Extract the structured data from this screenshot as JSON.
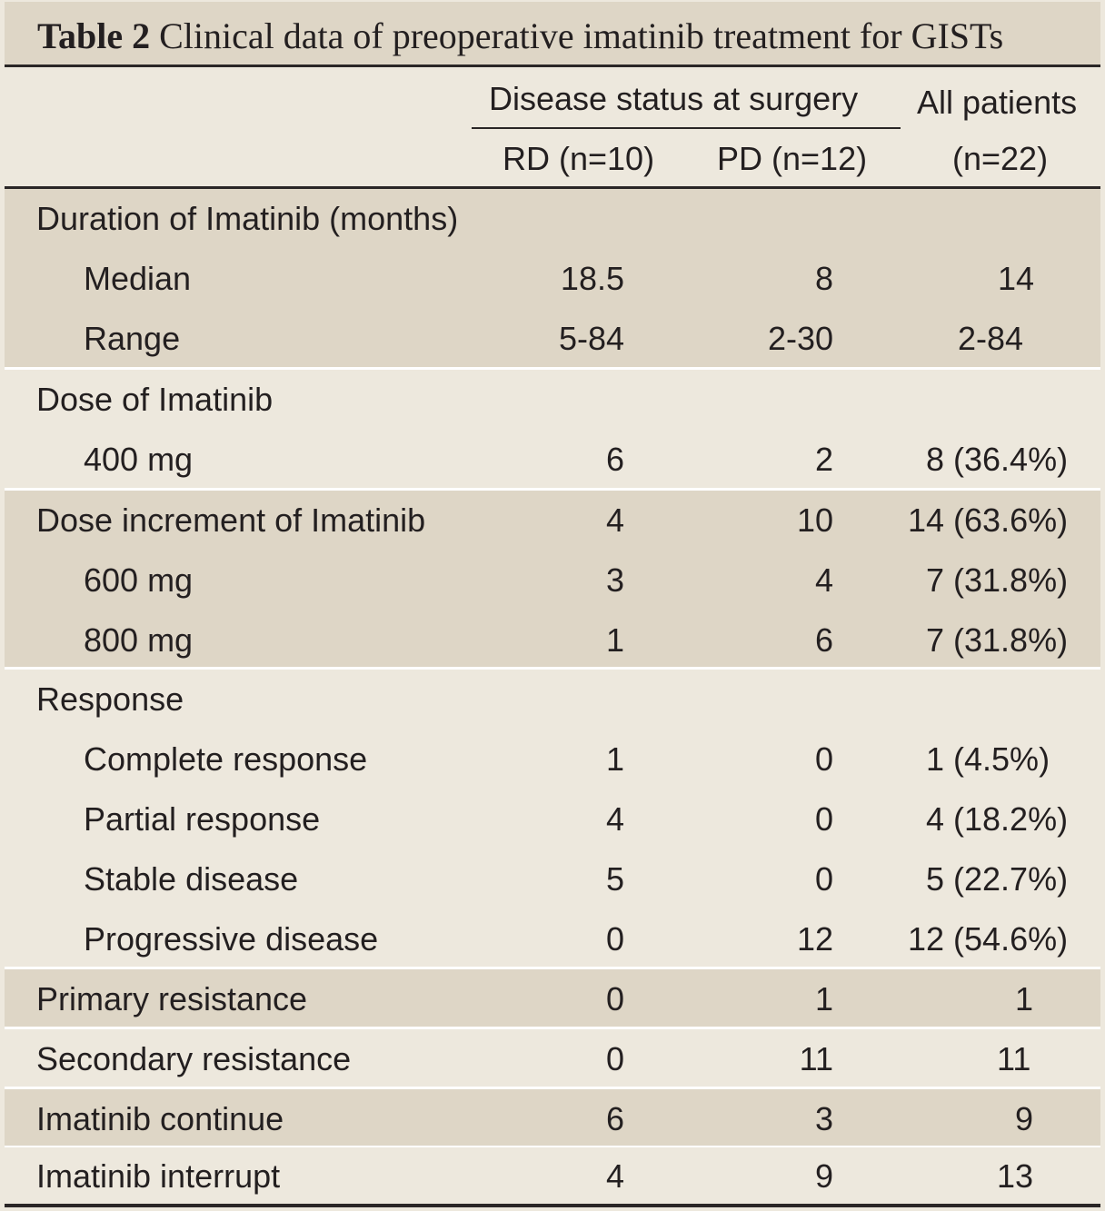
{
  "table": {
    "label": "Table 2",
    "caption": "Clinical data of preoperative imatinib treatment for GISTs",
    "header": {
      "group": "Disease status at surgery",
      "col1": "RD (n=10)",
      "col2": "PD (n=12)",
      "col3_line1": "All patients",
      "col3_line2": "(n=22)"
    },
    "rows": [
      {
        "label": "Duration of Imatinib (months)",
        "rd": "",
        "pd": "",
        "all": ""
      },
      {
        "label": "Median",
        "rd": "18.5",
        "pd": "8",
        "all": "14"
      },
      {
        "label": "Range",
        "rd": "5-84",
        "pd": "2-30",
        "all": "2-84"
      },
      {
        "label": "Dose of Imatinib",
        "rd": "",
        "pd": "",
        "all": ""
      },
      {
        "label": "400 mg",
        "rd": "6",
        "pd": "2",
        "all": "8 (36.4%)"
      },
      {
        "label": "Dose increment of Imatinib",
        "rd": "4",
        "pd": "10",
        "all": "14 (63.6%)"
      },
      {
        "label": "600 mg",
        "rd": "3",
        "pd": "4",
        "all": "7 (31.8%)"
      },
      {
        "label": "800 mg",
        "rd": "1",
        "pd": "6",
        "all": "7 (31.8%)"
      },
      {
        "label": "Response",
        "rd": "",
        "pd": "",
        "all": ""
      },
      {
        "label": "Complete response",
        "rd": "1",
        "pd": "0",
        "all": "1 (4.5%)"
      },
      {
        "label": "Partial response",
        "rd": "4",
        "pd": "0",
        "all": "4 (18.2%)"
      },
      {
        "label": "Stable disease",
        "rd": "5",
        "pd": "0",
        "all": "5 (22.7%)"
      },
      {
        "label": "Progressive disease",
        "rd": "0",
        "pd": "12",
        "all": "12 (54.6%)"
      },
      {
        "label": "Primary resistance",
        "rd": "0",
        "pd": "1",
        "all": "1"
      },
      {
        "label": "Secondary resistance",
        "rd": "0",
        "pd": "11",
        "all": "11"
      },
      {
        "label": "Imatinib continue",
        "rd": "6",
        "pd": "3",
        "all": "9"
      },
      {
        "label": "Imatinib interrupt",
        "rd": "4",
        "pd": "9",
        "all": "13"
      }
    ]
  }
}
